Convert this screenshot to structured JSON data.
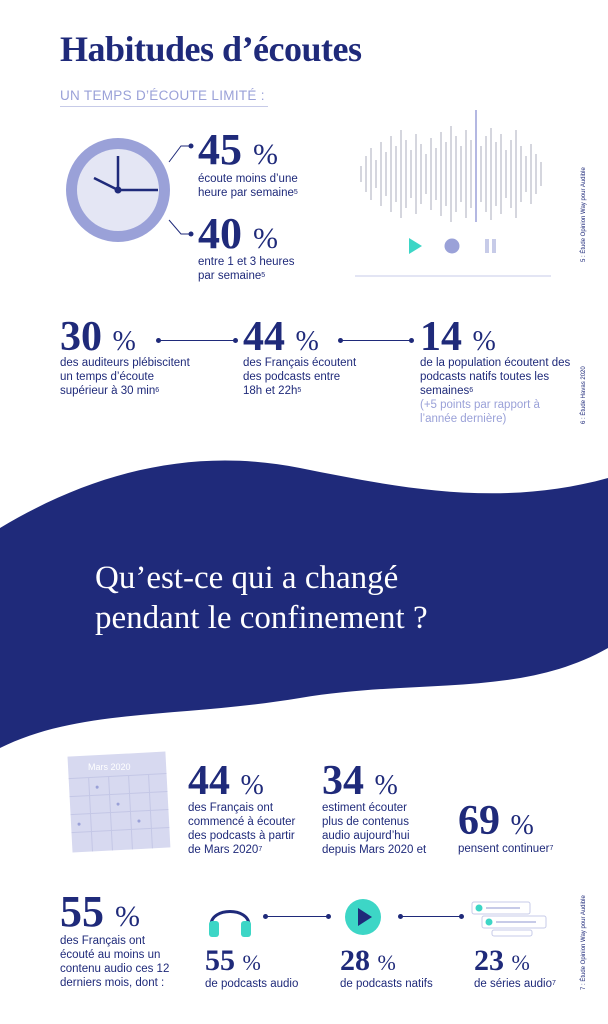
{
  "header": {
    "title": "Habitudes d’écoutes",
    "subtitle": "UN TEMPS D’ÉCOUTE LIMITÉ :"
  },
  "clock_stats": [
    {
      "value": "45",
      "unit": "%",
      "line1": "écoute moins d’une",
      "line2": "heure par semaine",
      "note": "5"
    },
    {
      "value": "40",
      "unit": "%",
      "line1": "entre 1 et 3 heures",
      "line2": "par semaine",
      "note": "5"
    }
  ],
  "listening_stats": [
    {
      "value": "30",
      "unit": "%",
      "lines": [
        "des auditeurs plébiscitent",
        "un temps d’écoute",
        "supérieur à 30 min"
      ],
      "note": "6"
    },
    {
      "value": "44",
      "unit": "%",
      "lines": [
        "des Français écoutent",
        "des podcasts entre",
        "18h et 22h"
      ],
      "note": "5"
    },
    {
      "value": "14",
      "unit": "%",
      "lines": [
        "de la population écoutent des",
        "podcasts natifs toutes les",
        "semaines"
      ],
      "note": "6",
      "extra": [
        "(+5 points par rapport à",
        "l’année dernière)"
      ]
    }
  ],
  "banner": {
    "line1": "Qu’est-ce qui a changé",
    "line2": "pendant le confinement ?"
  },
  "calendar": {
    "label": "Mars 2020"
  },
  "lockdown_stats": [
    {
      "value": "44",
      "unit": "%",
      "lines": [
        "des Français ont",
        "commencé à écouter",
        "des podcasts à partir",
        "de Mars 2020"
      ],
      "note": "7"
    },
    {
      "value": "34",
      "unit": "%",
      "lines": [
        "estiment écouter",
        "plus de contenus",
        "audio aujourd’hui",
        "depuis Mars 2020 et"
      ]
    },
    {
      "value": "69",
      "unit": "%",
      "lines": [
        "pensent continuer"
      ],
      "note": "7"
    }
  ],
  "audio_stats": {
    "main": {
      "value": "55",
      "unit": "%",
      "lines": [
        "des Français ont",
        "écouté au moins un",
        "contenu audio ces 12",
        "derniers mois, dont :"
      ]
    },
    "items": [
      {
        "value": "55",
        "unit": "%",
        "label": "de podcasts audio"
      },
      {
        "value": "28",
        "unit": "%",
        "label": "de podcasts natifs"
      },
      {
        "value": "23",
        "unit": "%",
        "label": "de séries audio",
        "note": "7"
      }
    ]
  },
  "sources": {
    "s5": "5 : Étude Opinion Way pour Audible",
    "s6": "6 : Étude Havas 2020",
    "s7": "7 : Étude Opinion Way pour Audible"
  },
  "colors": {
    "navy": "#1f2a7a",
    "lavender": "#9aa1d8",
    "teal": "#3dd6c6",
    "gray": "#b9bbc8"
  }
}
